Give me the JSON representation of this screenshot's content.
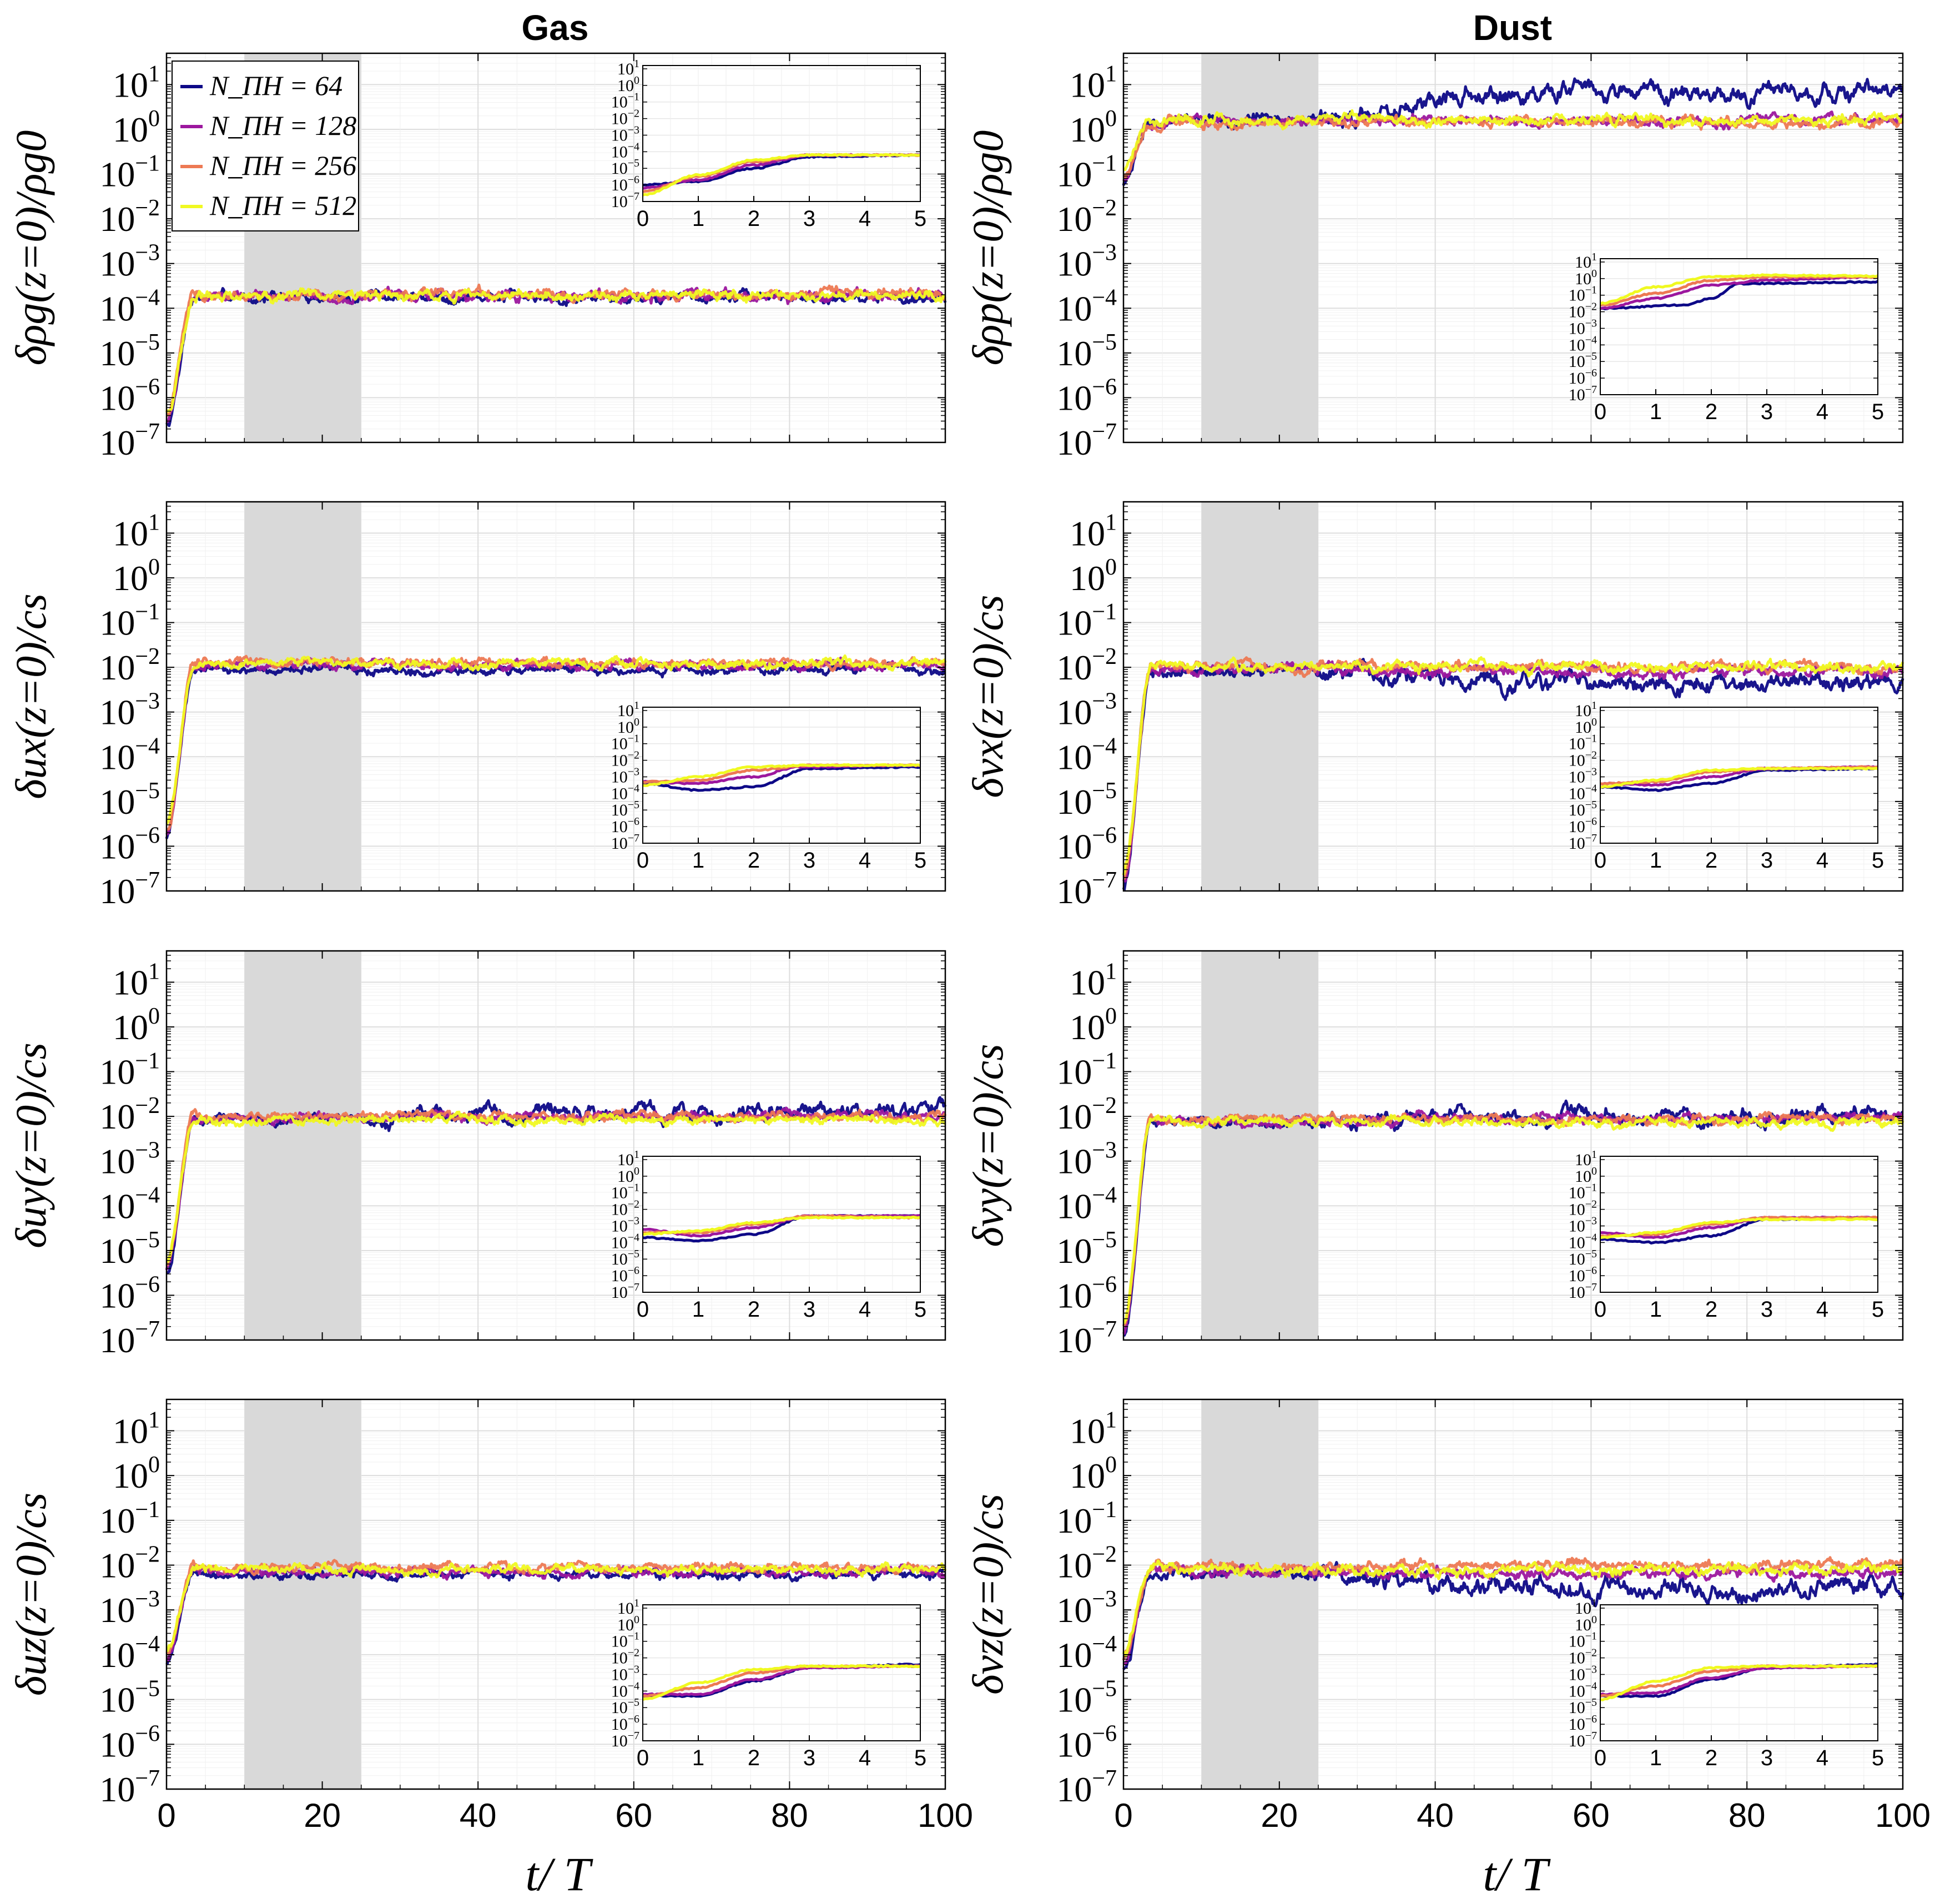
{
  "figure": {
    "column_titles": [
      "Gas",
      "Dust"
    ],
    "xlabel": "t/ T",
    "colors": {
      "N64": "#0d0887",
      "N128": "#9c179e",
      "N256": "#ed7953",
      "N512": "#f0f921",
      "shade": "#d9d9d9"
    }
  },
  "chart_data": {
    "type": "line",
    "xlim": [
      0,
      100
    ],
    "ylim_log10": [
      -7,
      1.7
    ],
    "xticks": [
      "0",
      "20",
      "40",
      "60",
      "80",
      "100"
    ],
    "yticks": [
      "10−7",
      "10−6",
      "10−5",
      "10−4",
      "10−3",
      "10−2",
      "10−1",
      "100",
      "101"
    ],
    "inset_xlim": [
      0,
      5
    ],
    "inset_xticks": [
      "0",
      "1",
      "2",
      "3",
      "4",
      "5"
    ],
    "inset_ylim_log10": [
      -7,
      1.2
    ],
    "inset_yticks": [
      "10−7",
      "10−6",
      "10−5",
      "10−4",
      "10−3",
      "10−2",
      "10−1",
      "100",
      "101"
    ],
    "shaded_interval": [
      10,
      25
    ],
    "legend": {
      "location": "top-left of first panel",
      "entries": [
        "N_ΠH = 64",
        "N_ΠH = 128",
        "N_ΠH = 256",
        "N_ΠH = 512"
      ]
    },
    "resolutions": [
      64,
      128,
      256,
      512
    ],
    "panels": [
      {
        "id": "gas-rho",
        "column": "Gas",
        "ylabel": "δρg(z=0)/ρg0",
        "inset_location": "top-right",
        "start_log10": -6.6,
        "plateau_log10": [
          -3.75,
          -3.72,
          -3.7,
          -3.72
        ],
        "late_drift_log10": [
          0,
          0,
          0,
          0
        ],
        "noise": 0.07,
        "inset_points": [
          [
            [
              0,
              -6.0
            ],
            [
              1,
              -5.8
            ],
            [
              2,
              -5.0
            ],
            [
              3,
              -4.3
            ],
            [
              5,
              -4.2
            ]
          ],
          [
            [
              0,
              -6.2
            ],
            [
              1,
              -5.7
            ],
            [
              2,
              -4.8
            ],
            [
              3,
              -4.2
            ],
            [
              5,
              -4.2
            ]
          ],
          [
            [
              0,
              -6.4
            ],
            [
              1,
              -5.5
            ],
            [
              2,
              -4.6
            ],
            [
              3,
              -4.2
            ],
            [
              5,
              -4.2
            ]
          ],
          [
            [
              0,
              -6.6
            ],
            [
              1,
              -5.4
            ],
            [
              2,
              -4.5
            ],
            [
              3,
              -4.2
            ],
            [
              5,
              -4.2
            ]
          ]
        ]
      },
      {
        "id": "dust-rho",
        "column": "Dust",
        "ylabel": "δρp(z=0)/ρg0",
        "inset_location": "bottom-right",
        "start_log10": -1.2,
        "plateau_log10": [
          0.2,
          0.2,
          0.15,
          0.22
        ],
        "late_drift_log10": [
          0.6,
          0,
          0,
          0
        ],
        "noise": 0.07,
        "inset_points": [
          [
            [
              0,
              -1.8
            ],
            [
              1.5,
              -1.6
            ],
            [
              2,
              -1.2
            ],
            [
              2.5,
              -0.3
            ],
            [
              5,
              -0.2
            ]
          ],
          [
            [
              0,
              -1.8
            ],
            [
              1,
              -1.2
            ],
            [
              2,
              -0.4
            ],
            [
              3,
              -0.1
            ],
            [
              5,
              0.1
            ]
          ],
          [
            [
              0,
              -1.6
            ],
            [
              1,
              -0.9
            ],
            [
              2,
              -0.1
            ],
            [
              3,
              0.1
            ],
            [
              5,
              0.1
            ]
          ],
          [
            [
              0,
              -1.5
            ],
            [
              1,
              -0.5
            ],
            [
              2,
              0.1
            ],
            [
              3,
              0.2
            ],
            [
              5,
              0.15
            ]
          ]
        ]
      },
      {
        "id": "gas-ux",
        "column": "Gas",
        "ylabel": "δux(z=0)/cs",
        "inset_location": "bottom-right",
        "start_log10": -5.8,
        "plateau_log10": [
          -2.05,
          -1.95,
          -1.9,
          -1.92
        ],
        "late_drift_log10": [
          0,
          0,
          0,
          0
        ],
        "noise": 0.06,
        "inset_points": [
          [
            [
              0,
              -3.4
            ],
            [
              1,
              -3.8
            ],
            [
              2,
              -3.6
            ],
            [
              3,
              -2.5
            ],
            [
              5,
              -2.4
            ]
          ],
          [
            [
              0,
              -3.3
            ],
            [
              1,
              -3.4
            ],
            [
              2,
              -3.0
            ],
            [
              2.8,
              -2.4
            ],
            [
              5,
              -2.3
            ]
          ],
          [
            [
              0,
              -3.3
            ],
            [
              1,
              -3.2
            ],
            [
              2,
              -2.6
            ],
            [
              3,
              -2.3
            ],
            [
              5,
              -2.3
            ]
          ],
          [
            [
              0,
              -3.5
            ],
            [
              1,
              -3.0
            ],
            [
              2,
              -2.4
            ],
            [
              3,
              -2.3
            ],
            [
              5,
              -2.3
            ]
          ]
        ]
      },
      {
        "id": "dust-vx",
        "column": "Dust",
        "ylabel": "δvx(z=0)/cs",
        "inset_location": "bottom-right",
        "start_log10": -6.9,
        "plateau_log10": [
          -2.1,
          -2.05,
          -1.98,
          -2.0
        ],
        "late_drift_log10": [
          -0.25,
          -0.05,
          0,
          0
        ],
        "noise": 0.07,
        "inset_points": [
          [
            [
              0,
              -3.6
            ],
            [
              1,
              -3.8
            ],
            [
              2,
              -3.4
            ],
            [
              3,
              -2.6
            ],
            [
              5,
              -2.5
            ]
          ],
          [
            [
              0,
              -3.4
            ],
            [
              1,
              -3.5
            ],
            [
              2,
              -3.0
            ],
            [
              3,
              -2.5
            ],
            [
              5,
              -2.4
            ]
          ],
          [
            [
              0,
              -3.4
            ],
            [
              1,
              -3.3
            ],
            [
              2,
              -2.7
            ],
            [
              3,
              -2.5
            ],
            [
              5,
              -2.4
            ]
          ],
          [
            [
              0,
              -3.6
            ],
            [
              1,
              -3.2
            ],
            [
              2,
              -2.6
            ],
            [
              3,
              -2.5
            ],
            [
              5,
              -2.5
            ]
          ]
        ]
      },
      {
        "id": "gas-uy",
        "column": "Gas",
        "ylabel": "δuy(z=0)/cs",
        "inset_location": "bottom-right",
        "start_log10": -5.5,
        "plateau_log10": [
          -2.05,
          -2.05,
          -2.0,
          -2.08
        ],
        "late_drift_log10": [
          0.15,
          0.05,
          0,
          0
        ],
        "noise": 0.06,
        "inset_points": [
          [
            [
              0,
              -3.7
            ],
            [
              1,
              -3.9
            ],
            [
              2,
              -3.5
            ],
            [
              3,
              -2.4
            ],
            [
              5,
              -2.4
            ]
          ],
          [
            [
              0,
              -3.2
            ],
            [
              1,
              -3.6
            ],
            [
              2,
              -3.1
            ],
            [
              3,
              -2.4
            ],
            [
              5,
              -2.4
            ]
          ],
          [
            [
              0,
              -3.4
            ],
            [
              1,
              -3.4
            ],
            [
              2,
              -2.9
            ],
            [
              3,
              -2.4
            ],
            [
              5,
              -2.5
            ]
          ],
          [
            [
              0,
              -3.5
            ],
            [
              1,
              -3.3
            ],
            [
              2,
              -2.8
            ],
            [
              3,
              -2.5
            ],
            [
              5,
              -2.5
            ]
          ]
        ]
      },
      {
        "id": "dust-vy",
        "column": "Dust",
        "ylabel": "δvy(z=0)/cs",
        "inset_location": "bottom-right",
        "start_log10": -6.9,
        "plateau_log10": [
          -2.15,
          -2.1,
          -2.05,
          -2.1
        ],
        "late_drift_log10": [
          0.15,
          0.05,
          0,
          -0.05
        ],
        "noise": 0.06,
        "inset_points": [
          [
            [
              0,
              -3.8
            ],
            [
              1,
              -4.0
            ],
            [
              2,
              -3.6
            ],
            [
              3,
              -2.6
            ],
            [
              5,
              -2.5
            ]
          ],
          [
            [
              0,
              -3.4
            ],
            [
              1,
              -3.7
            ],
            [
              2,
              -3.1
            ],
            [
              3,
              -2.5
            ],
            [
              5,
              -2.5
            ]
          ],
          [
            [
              0,
              -3.6
            ],
            [
              1,
              -3.5
            ],
            [
              2,
              -2.9
            ],
            [
              3,
              -2.5
            ],
            [
              5,
              -2.5
            ]
          ],
          [
            [
              0,
              -3.7
            ],
            [
              1,
              -3.4
            ],
            [
              2,
              -2.8
            ],
            [
              3,
              -2.6
            ],
            [
              5,
              -2.6
            ]
          ]
        ]
      },
      {
        "id": "gas-uz",
        "column": "Gas",
        "ylabel": "δuz(z=0)/cs",
        "inset_location": "bottom-right",
        "start_log10": -4.2,
        "plateau_log10": [
          -2.2,
          -2.15,
          -2.05,
          -2.1
        ],
        "late_drift_log10": [
          0,
          0,
          0,
          0
        ],
        "noise": 0.06,
        "inset_points": [
          [
            [
              0,
              -4.3
            ],
            [
              1,
              -4.3
            ],
            [
              2,
              -3.4
            ],
            [
              3,
              -2.6
            ],
            [
              5,
              -2.4
            ]
          ],
          [
            [
              0,
              -4.2
            ],
            [
              1,
              -4.2
            ],
            [
              2,
              -3.3
            ],
            [
              3,
              -2.6
            ],
            [
              5,
              -2.5
            ]
          ],
          [
            [
              0,
              -4.3
            ],
            [
              1,
              -3.8
            ],
            [
              2,
              -2.9
            ],
            [
              3,
              -2.5
            ],
            [
              5,
              -2.5
            ]
          ],
          [
            [
              0,
              -4.5
            ],
            [
              1,
              -3.5
            ],
            [
              2,
              -2.7
            ],
            [
              3,
              -2.5
            ],
            [
              5,
              -2.5
            ]
          ]
        ]
      },
      {
        "id": "dust-vz",
        "column": "Dust",
        "ylabel": "δvz(z=0)/cs",
        "inset_location": "bottom-right",
        "start_log10": -4.3,
        "plateau_log10": [
          -2.2,
          -2.15,
          -2.05,
          -2.1
        ],
        "late_drift_log10": [
          -0.3,
          -0.05,
          0.05,
          0
        ],
        "noise": 0.07,
        "inset_points": [
          [
            [
              0,
              -4.3
            ],
            [
              1,
              -4.3
            ],
            [
              2,
              -3.3
            ],
            [
              3,
              -2.6
            ],
            [
              5,
              -2.4
            ]
          ],
          [
            [
              0,
              -4.2
            ],
            [
              1,
              -4.1
            ],
            [
              2,
              -3.2
            ],
            [
              3,
              -2.6
            ],
            [
              5,
              -2.5
            ]
          ],
          [
            [
              0,
              -4.3
            ],
            [
              1,
              -3.7
            ],
            [
              2,
              -2.8
            ],
            [
              3,
              -2.5
            ],
            [
              5,
              -2.5
            ]
          ],
          [
            [
              0,
              -4.5
            ],
            [
              1,
              -3.4
            ],
            [
              2,
              -2.6
            ],
            [
              3,
              -2.5
            ],
            [
              5,
              -2.5
            ]
          ]
        ]
      }
    ]
  }
}
